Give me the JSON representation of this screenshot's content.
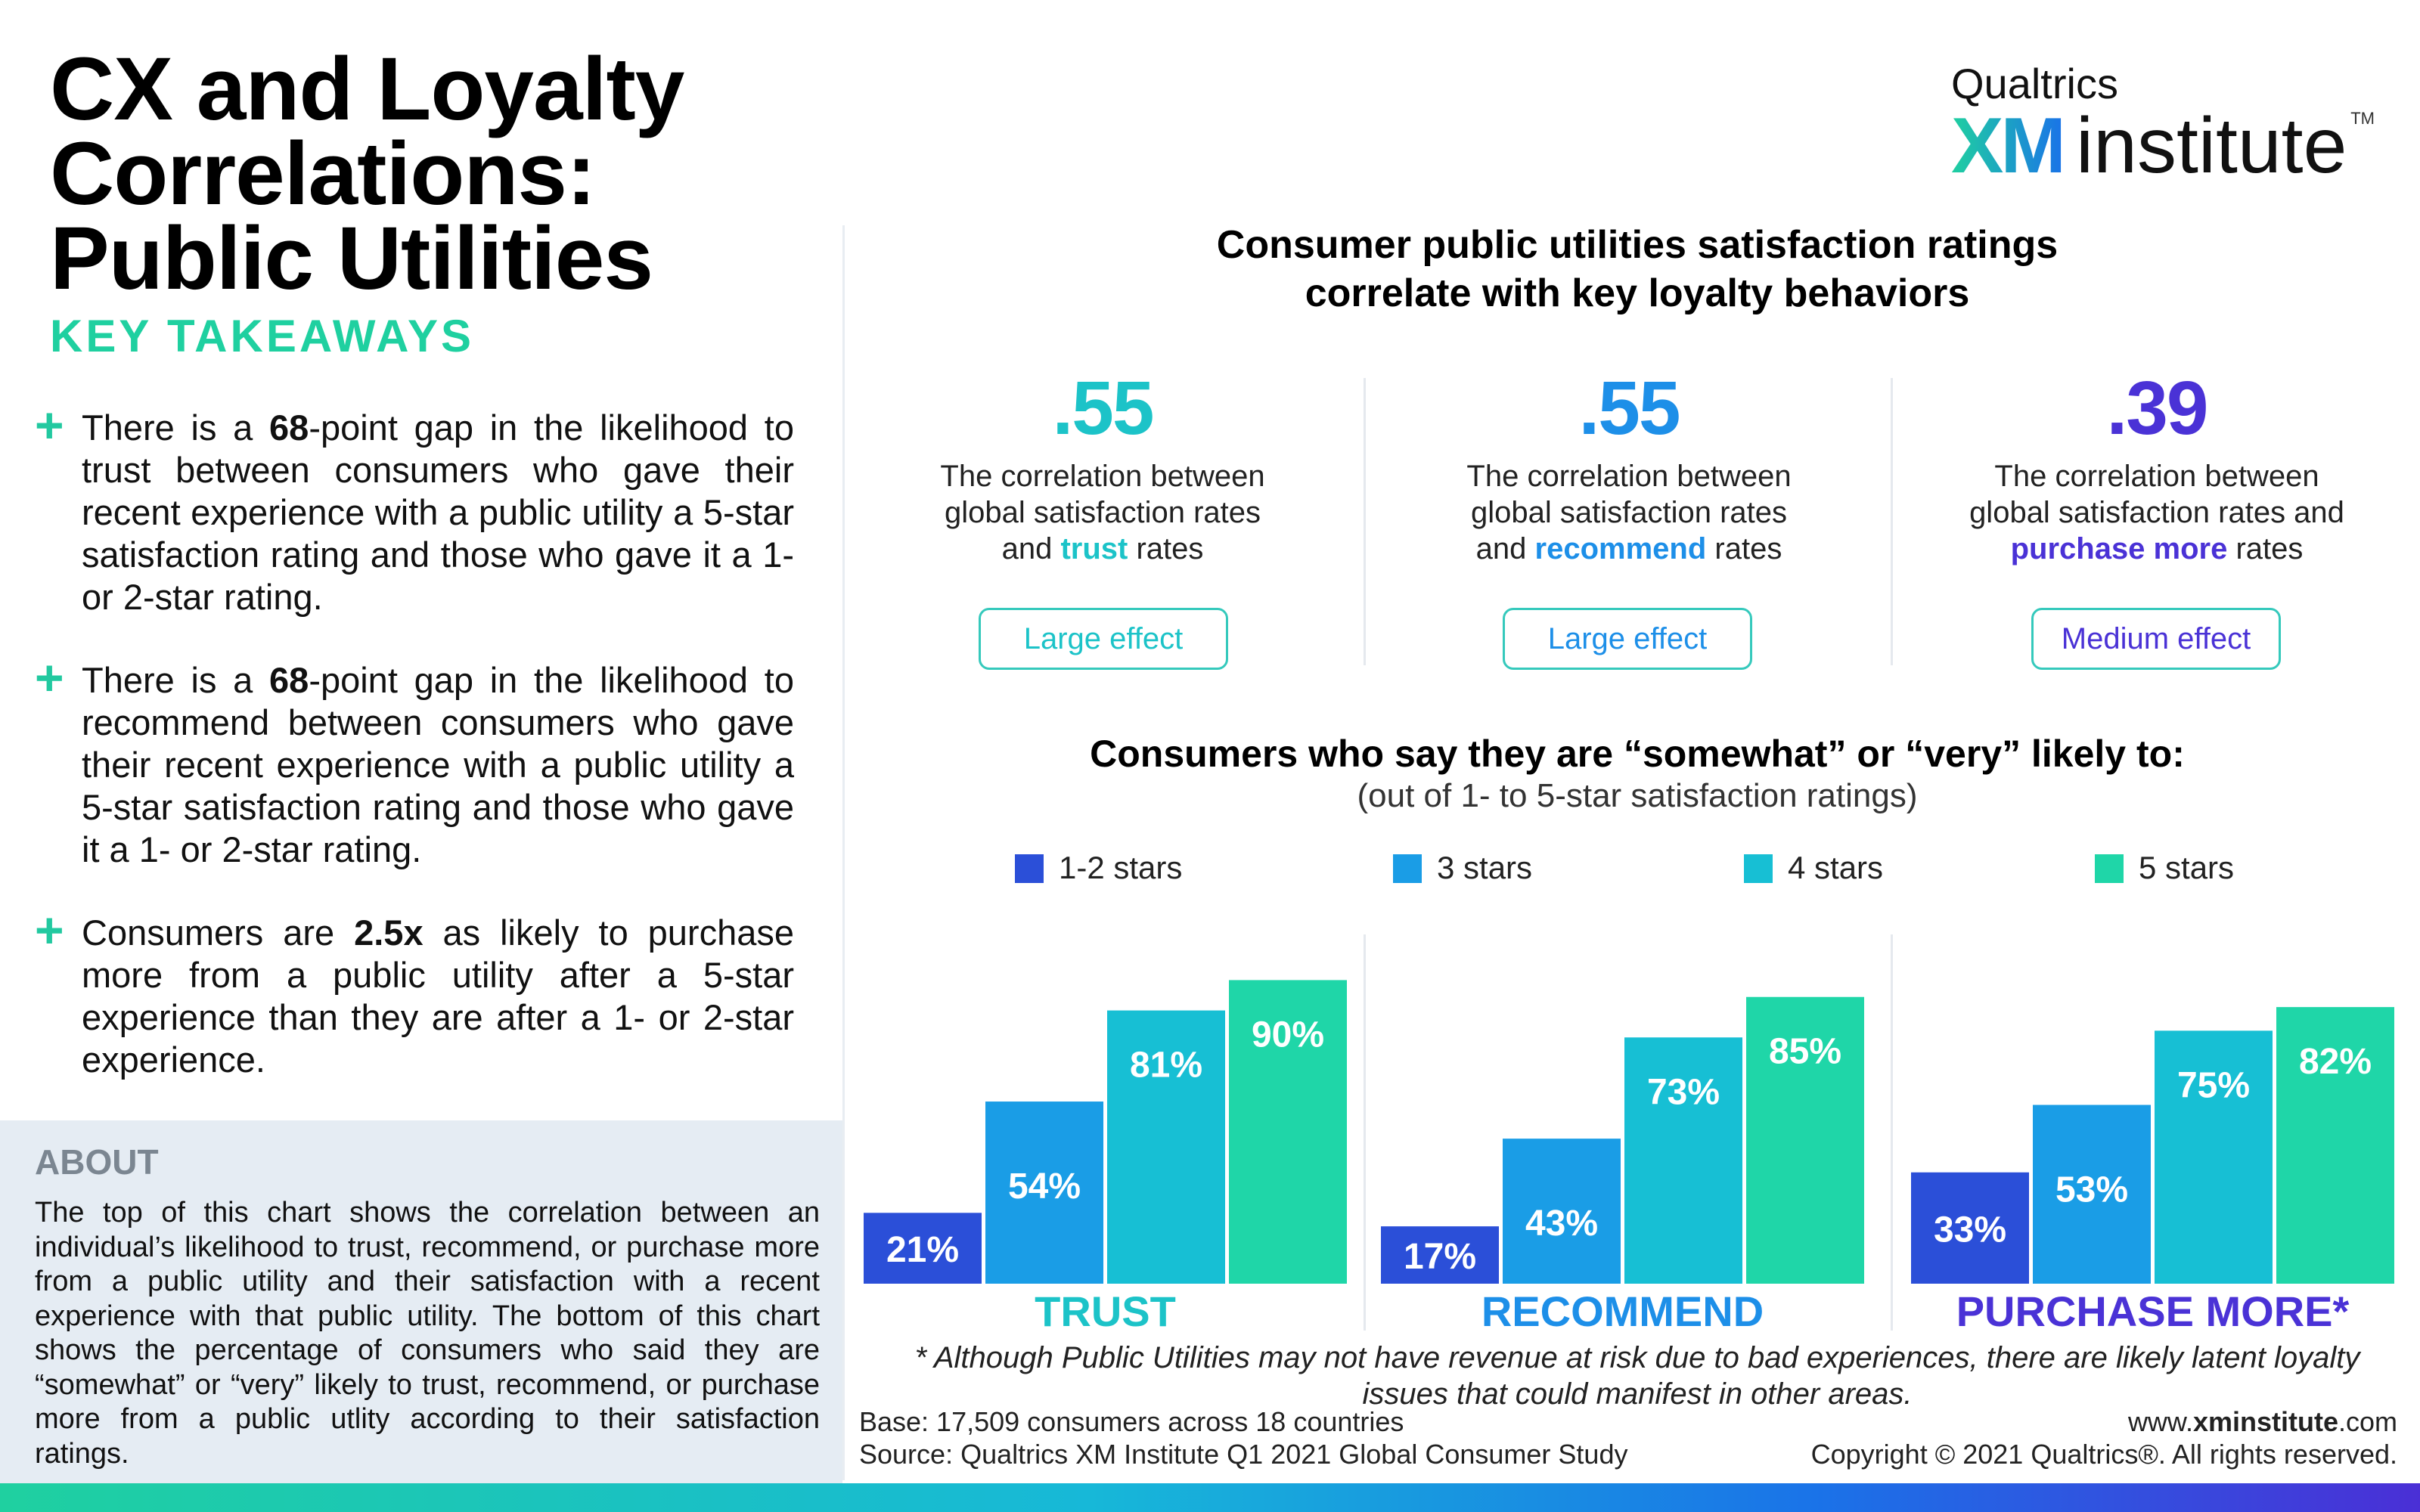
{
  "title_line1": "CX and Loyalty Correlations:",
  "title_line2": "Public Utilities",
  "logo": {
    "brand": "Qualtrics",
    "xm": "XM",
    "institute": "institute",
    "tm": "TM"
  },
  "key_takeaways": {
    "heading": "KEY TAKEAWAYS",
    "items": [
      {
        "pre": "There is a ",
        "bold": "68",
        "post": "-point gap in the likelihood to trust between consumers who gave their recent experience with a public utility a 5-star satisfaction rating and those who gave it a 1- or 2-star rating."
      },
      {
        "pre": "There is a ",
        "bold": "68",
        "post": "-point gap in the likelihood to recommend between consumers who gave their recent experience with a public utility a 5-star satisfaction rating and those who gave it a 1- or 2-star rating."
      },
      {
        "pre": "Consumers are ",
        "bold": "2.5x",
        "post": " as likely to purchase more from a public utility after a 5-star experience than they are after a 1- or 2-star experience."
      }
    ]
  },
  "about": {
    "heading": "ABOUT",
    "text": "The top of this chart shows the correlation between an individual’s likelihood to trust, recommend, or purchase more from a public utility and their satisfaction with a recent experience with that public utility. The bottom of this chart shows the percentage of consumers who said they are “somewhat” or “very” likely to trust, recommend, or purchase more from a public utlity according to their satisfaction ratings."
  },
  "correlation": {
    "title_line1": "Consumer public utilities satisfaction ratings",
    "title_line2": "correlate with key loyalty behaviors",
    "items": [
      {
        "value": ".55",
        "line1": "The correlation between",
        "line2": "global satisfaction rates",
        "line3_pre": "and ",
        "keyword": "trust",
        "line3_post": " rates",
        "effect": "Large effect",
        "color": "#1cc3c8"
      },
      {
        "value": ".55",
        "line1": "The correlation between",
        "line2": "global satisfaction rates",
        "line3_pre": "and ",
        "keyword": "recommend",
        "line3_post": " rates",
        "effect": "Large effect",
        "color": "#1d8fe8"
      },
      {
        "value": ".39",
        "line1": "The correlation between",
        "line2": "global satisfaction rates and",
        "line3_pre": "",
        "keyword": "purchase more",
        "line3_post": " rates",
        "effect": "Medium effect",
        "color": "#4a32d6"
      }
    ]
  },
  "chart_title": "Consumers who say they are “somewhat” or “very” likely to:",
  "chart_subtitle": "(out of 1- to 5-star satisfaction ratings)",
  "chart_data": {
    "type": "bar",
    "categories": [
      "TRUST",
      "RECOMMEND",
      "PURCHASE MORE*"
    ],
    "series": [
      {
        "name": "1-2 stars",
        "values": [
          21,
          17,
          33
        ],
        "color": "#2b4fd8"
      },
      {
        "name": "3 stars",
        "values": [
          54,
          43,
          53
        ],
        "color": "#1a9de6"
      },
      {
        "name": "4 stars",
        "values": [
          81,
          73,
          75
        ],
        "color": "#17bfd4"
      },
      {
        "name": "5 stars",
        "values": [
          90,
          85,
          82
        ],
        "color": "#1fd6a8"
      }
    ],
    "category_colors": [
      "#1cc3c8",
      "#1d8fe8",
      "#4a32d6"
    ],
    "unit": "%",
    "ylim": [
      0,
      100
    ],
    "legend": "top"
  },
  "footnote": "* Although Public Utilities may not have revenue at risk due to bad experiences, there are likely latent loyalty issues that could manifest in other areas.",
  "base": "Base: 17,509 consumers across 18 countries",
  "source": "Source: Qualtrics XM Institute Q1 2021 Global Consumer Study",
  "site_pre": "www.",
  "site_bold": "xminstitute",
  "site_post": ".com",
  "copyright": "Copyright © 2021 Qualtrics®. All rights reserved."
}
